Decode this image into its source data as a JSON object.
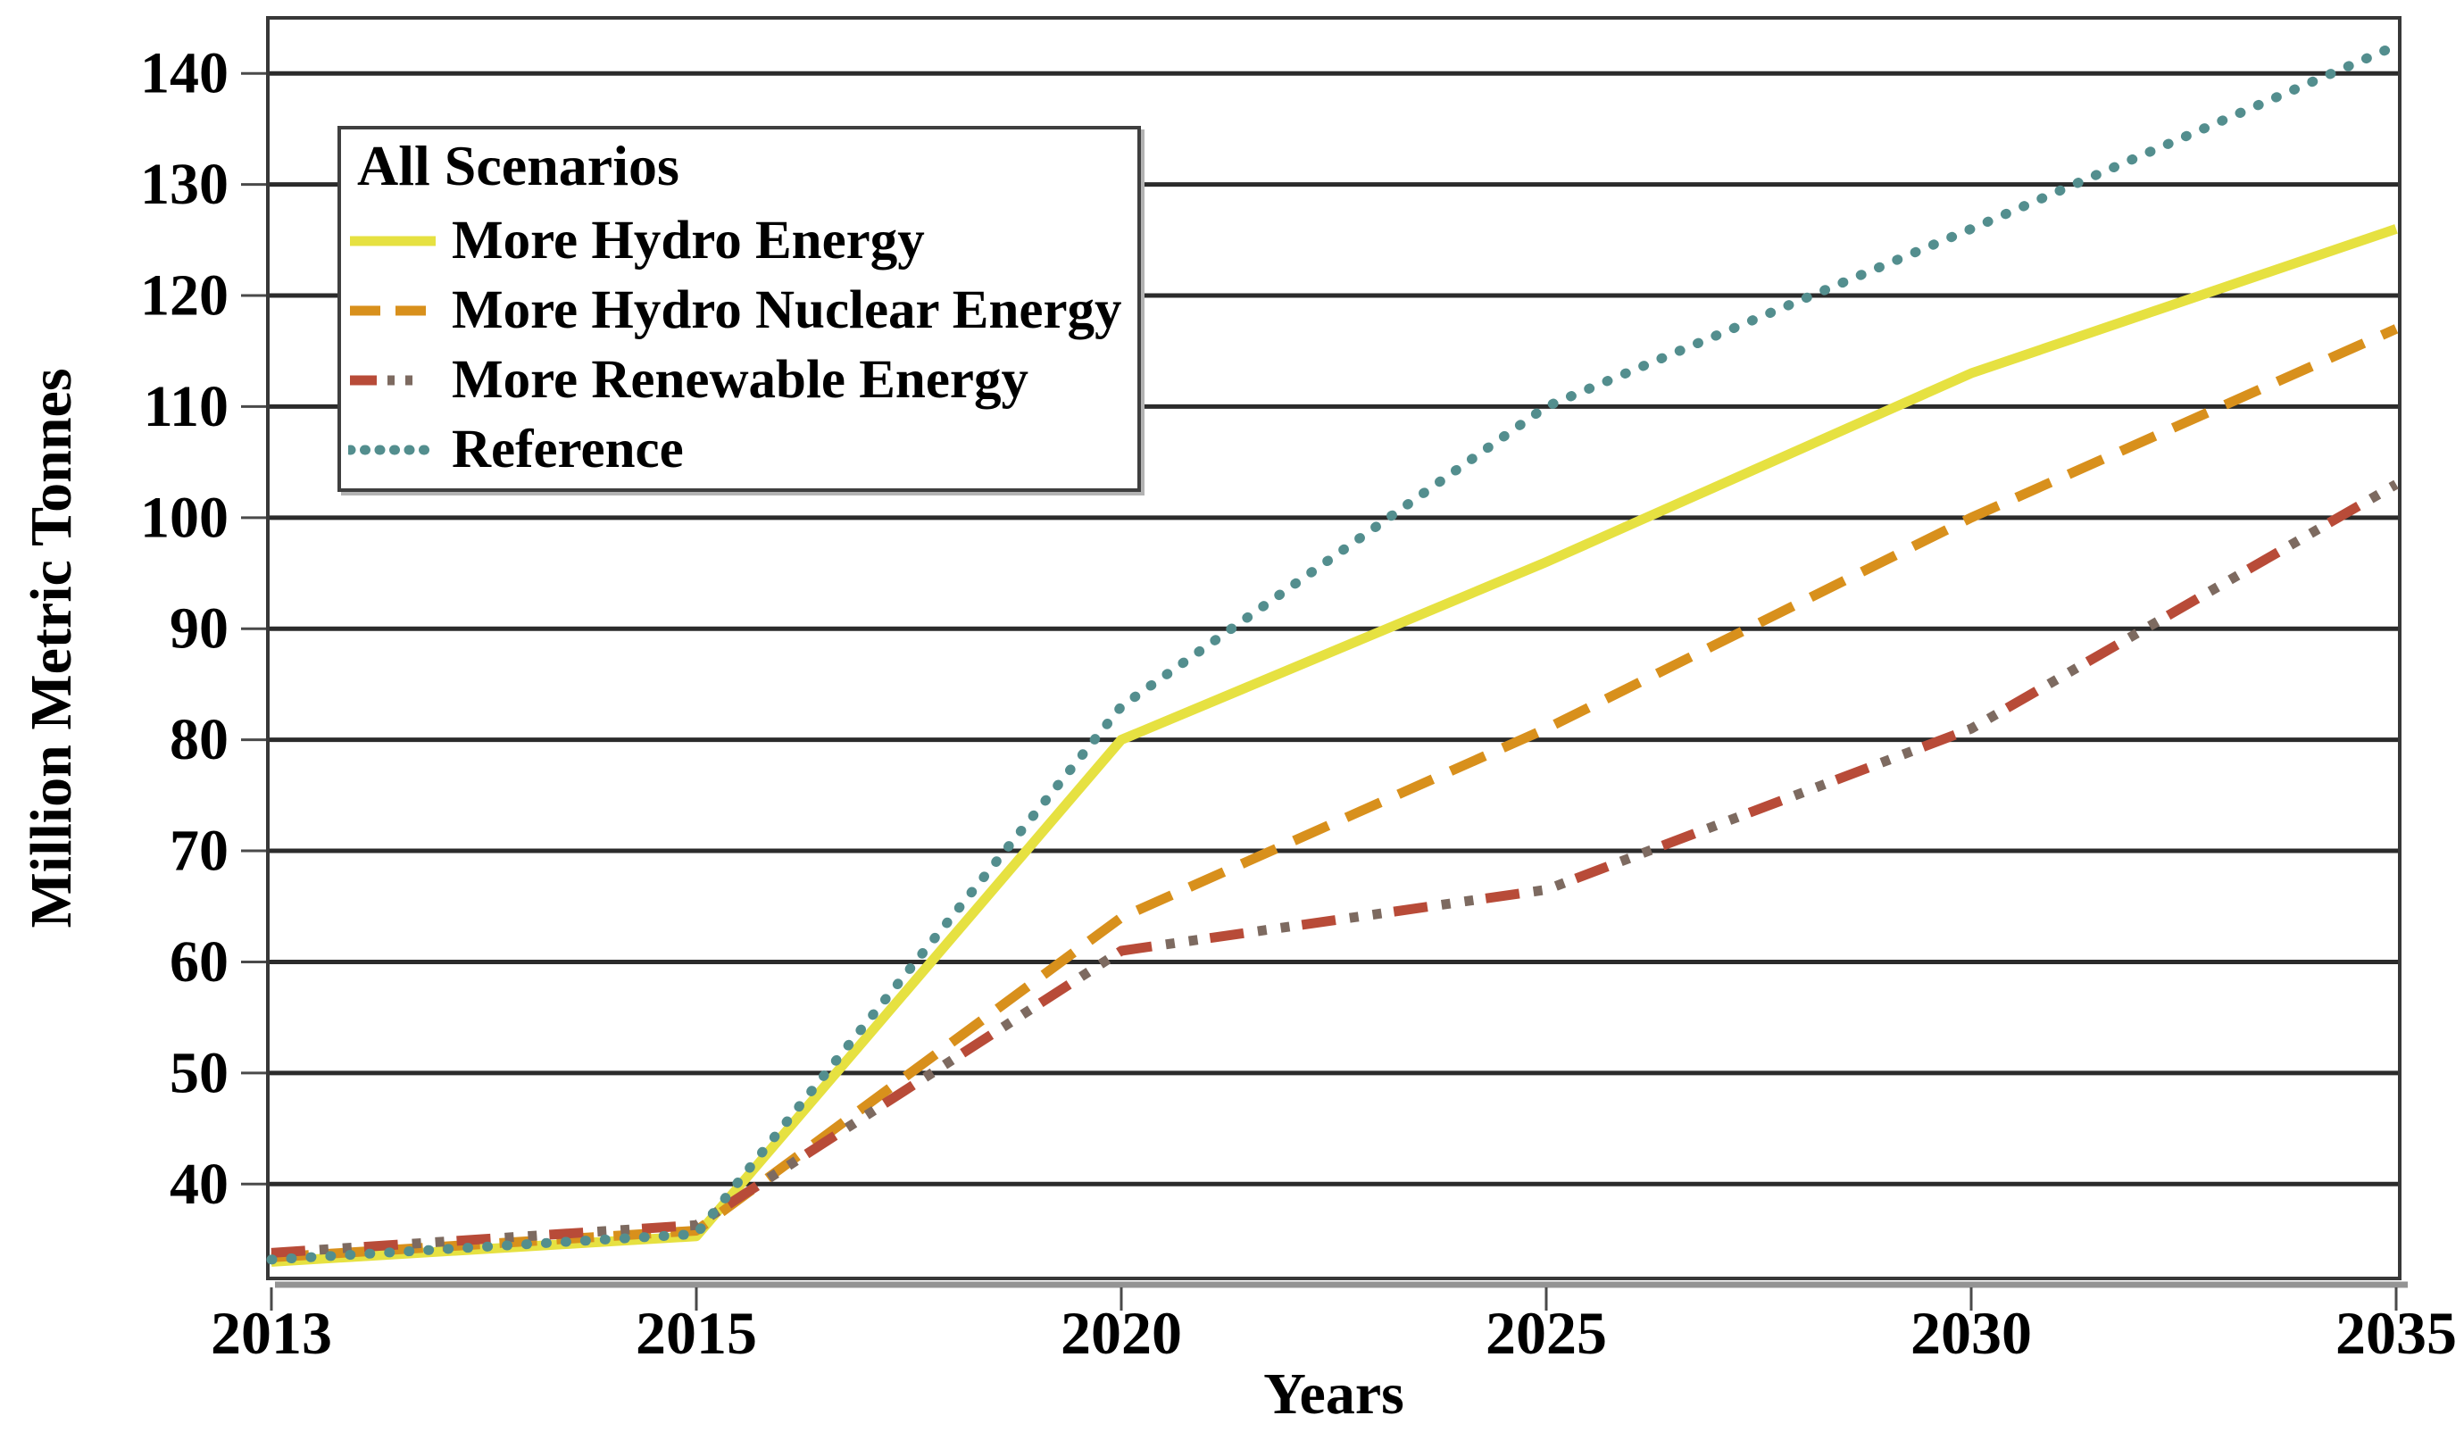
{
  "chart_data": {
    "type": "line",
    "title": "",
    "xlabel": "Years",
    "ylabel": "Million Metric Tonnes",
    "legend_title": "All Scenarios",
    "legend_position": "upper-left",
    "grid": "horizontal",
    "x_categories": [
      "2013",
      "2015",
      "2020",
      "2025",
      "2030",
      "2035"
    ],
    "x_spacing": "equal-categorical",
    "yticks": [
      "40",
      "50",
      "60",
      "70",
      "80",
      "90",
      "100",
      "110",
      "120",
      "130",
      "140"
    ],
    "ylim": [
      31.5,
      145
    ],
    "series": [
      {
        "name": "More Hydro Energy",
        "color": "#e6e141",
        "line_style": "solid",
        "values": [
          33,
          35.3,
          80,
          96,
          113,
          126
        ]
      },
      {
        "name": "More Hydro Nuclear Energy",
        "color": "#d8901c",
        "line_style": "dashed",
        "values": [
          33.4,
          35.8,
          64,
          81,
          100,
          117
        ]
      },
      {
        "name": "More Renewable Energy",
        "color": "#b84b38",
        "dot_color": "#7d6a60",
        "line_style": "dash-dot-dot",
        "values": [
          33.8,
          36.3,
          61,
          66.5,
          81,
          103
        ]
      },
      {
        "name": "Reference",
        "color": "#538e8e",
        "line_style": "dotted",
        "values": [
          33.2,
          35.5,
          83,
          110,
          126,
          142.5
        ]
      }
    ]
  },
  "theme": {
    "background": "#ffffff",
    "grid_color": "#2b2b2b",
    "border_color": "#383838",
    "axis_shadow_color": "#949494",
    "tick_color": "#4a4a4a",
    "text_color": "#000000",
    "legend_border_color": "#3f3f3f",
    "legend_background": "#ffffff"
  }
}
